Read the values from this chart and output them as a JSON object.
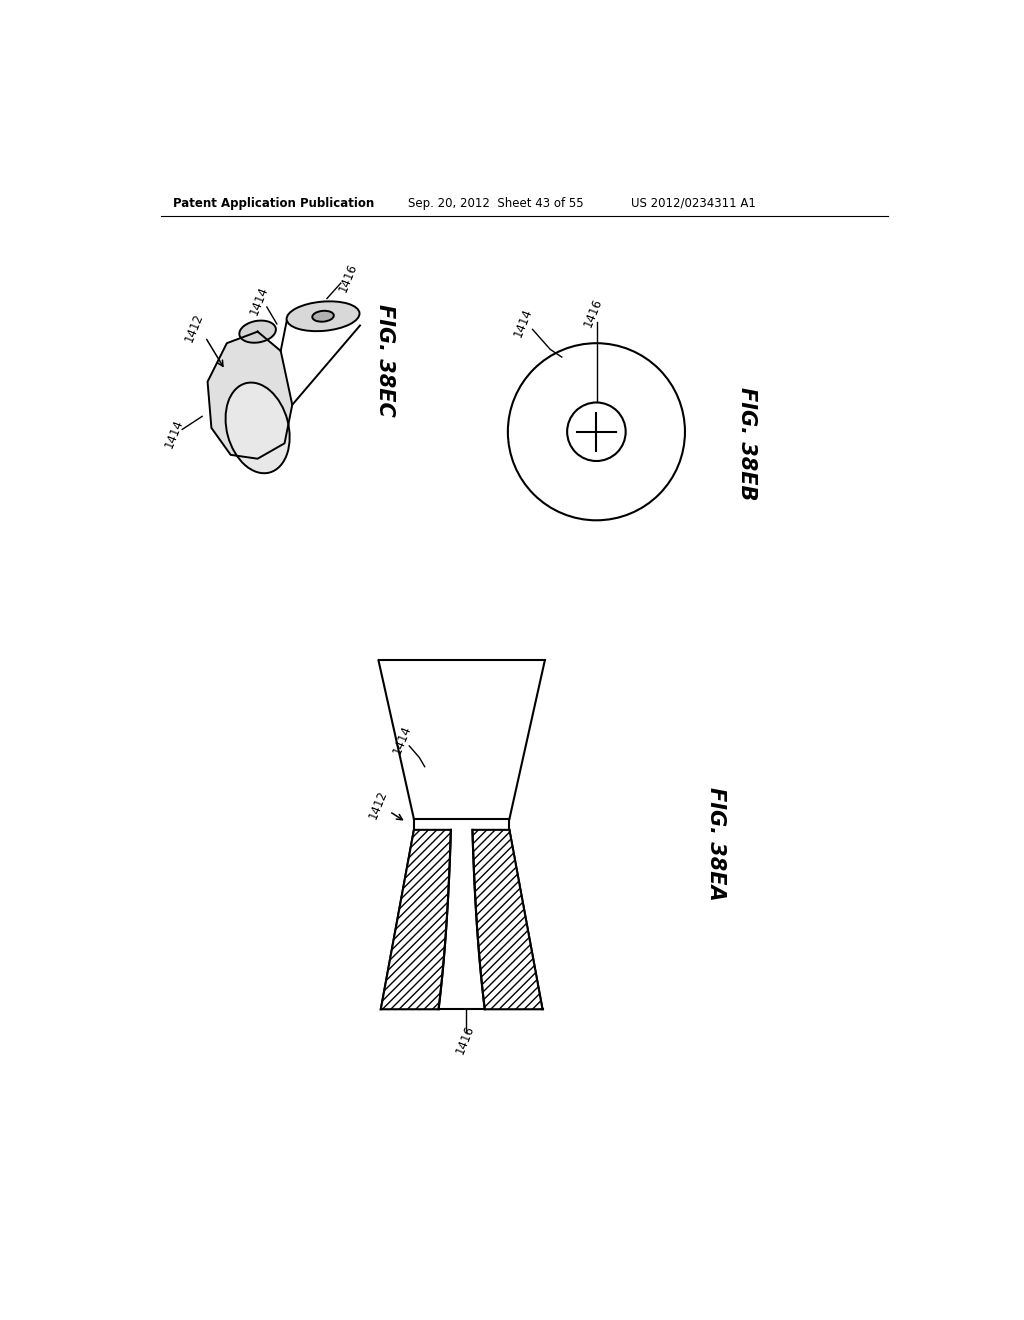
{
  "background_color": "#ffffff",
  "header_text": "Patent Application Publication",
  "header_date": "Sep. 20, 2012  Sheet 43 of 55",
  "header_patent": "US 2012/0234311 A1",
  "fig_38ec_label": "FIG. 38EC",
  "fig_38eb_label": "FIG. 38EB",
  "fig_38ea_label": "FIG. 38EA",
  "line_color": "#000000",
  "lw": 1.5
}
